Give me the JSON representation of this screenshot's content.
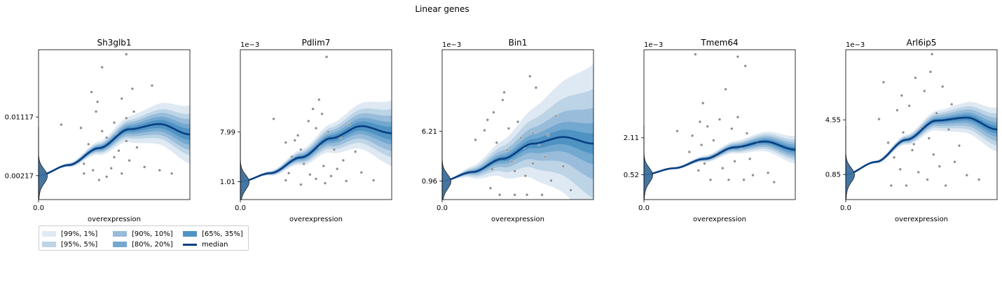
{
  "figure": {
    "title": "Linear genes"
  },
  "legend": {
    "items": [
      {
        "label": "[99%, 1%]",
        "color": "#dfe9f3"
      },
      {
        "label": "[95%, 5%]",
        "color": "#bcd4e6"
      },
      {
        "label": "[90%, 10%]",
        "color": "#98bcda"
      },
      {
        "label": "[80%, 20%]",
        "color": "#73a8d0"
      },
      {
        "label": "[65%, 35%]",
        "color": "#4f93c3"
      },
      {
        "label": "median",
        "color": "#083f83"
      }
    ]
  },
  "chart_data": [
    {
      "type": "line",
      "title": "Sh3glb1",
      "xlabel": "overexpression",
      "x_ticks": [
        "0.0"
      ],
      "y_ticks": [
        0.00217,
        0.01117
      ],
      "y_tick_labels": [
        "0.00217",
        "0.01117"
      ],
      "y_offset_label": "",
      "ylim": [
        -0.0015,
        0.0215
      ],
      "xlim": [
        0,
        1
      ],
      "median": [
        [
          0,
          0.00217
        ],
        [
          0.2,
          0.0038
        ],
        [
          0.4,
          0.0064
        ],
        [
          0.6,
          0.0093
        ],
        [
          0.8,
          0.0101
        ],
        [
          1,
          0.0085
        ]
      ],
      "band_widths": [
        0.0045,
        0.0032,
        0.0024,
        0.0016,
        0.0009
      ],
      "points": [
        [
          0.15,
          0.01
        ],
        [
          0.28,
          0.0095
        ],
        [
          0.33,
          0.007
        ],
        [
          0.3,
          0.004
        ],
        [
          0.36,
          0.003
        ],
        [
          0.35,
          0.015
        ],
        [
          0.38,
          0.012
        ],
        [
          0.39,
          0.0135
        ],
        [
          0.42,
          0.009
        ],
        [
          0.45,
          0.008
        ],
        [
          0.45,
          0.002
        ],
        [
          0.5,
          0.005
        ],
        [
          0.5,
          0.0103
        ],
        [
          0.53,
          0.006
        ],
        [
          0.55,
          0.014
        ],
        [
          0.55,
          0.0025
        ],
        [
          0.58,
          0.011
        ],
        [
          0.6,
          0.0045
        ],
        [
          0.62,
          0.0155
        ],
        [
          0.63,
          0.012
        ],
        [
          0.3,
          0.0025
        ],
        [
          0.4,
          0.0015
        ],
        [
          0.48,
          0.0033
        ],
        [
          0.52,
          0.0085
        ],
        [
          0.58,
          0.0075
        ],
        [
          0.65,
          0.0065
        ],
        [
          0.7,
          0.0035
        ],
        [
          0.75,
          0.016
        ],
        [
          0.8,
          0.003
        ],
        [
          0.88,
          0.0025
        ],
        [
          0.42,
          0.0188
        ],
        [
          0.58,
          0.0208
        ]
      ],
      "density_ref": 0.00217
    },
    {
      "type": "line",
      "title": "Pdlim7",
      "xlabel": "overexpression",
      "x_ticks": [
        "0.0"
      ],
      "y_ticks": [
        1.01,
        7.99
      ],
      "y_tick_labels": [
        "1.01",
        "7.99"
      ],
      "y_offset_label": "1e−3",
      "ylim": [
        -1.5,
        19.5
      ],
      "xlim": [
        0,
        1
      ],
      "median": [
        [
          0,
          1.01
        ],
        [
          0.2,
          2.2
        ],
        [
          0.4,
          4.4
        ],
        [
          0.6,
          7.1
        ],
        [
          0.8,
          8.8
        ],
        [
          1,
          7.8
        ]
      ],
      "band_widths": [
        4.6,
        3.4,
        2.5,
        1.6,
        0.9
      ],
      "points": [
        [
          0.22,
          9.8
        ],
        [
          0.3,
          6.5
        ],
        [
          0.3,
          1.2
        ],
        [
          0.32,
          2.2
        ],
        [
          0.34,
          4.5
        ],
        [
          0.36,
          6.8
        ],
        [
          0.38,
          7.5
        ],
        [
          0.4,
          5.5
        ],
        [
          0.4,
          0.6
        ],
        [
          0.42,
          3.5
        ],
        [
          0.45,
          9.5
        ],
        [
          0.46,
          2.0
        ],
        [
          0.48,
          11.2
        ],
        [
          0.5,
          8.5
        ],
        [
          0.5,
          1.4
        ],
        [
          0.52,
          12.5
        ],
        [
          0.52,
          6.0
        ],
        [
          0.54,
          10.5
        ],
        [
          0.55,
          3.2
        ],
        [
          0.56,
          0.8
        ],
        [
          0.58,
          8.0
        ],
        [
          0.6,
          1.8
        ],
        [
          0.62,
          5.5
        ],
        [
          0.64,
          2.8
        ],
        [
          0.66,
          7.2
        ],
        [
          0.68,
          4.0
        ],
        [
          0.7,
          1.1
        ],
        [
          0.72,
          9.0
        ],
        [
          0.76,
          5.2
        ],
        [
          0.8,
          2.3
        ],
        [
          0.88,
          1.2
        ],
        [
          0.57,
          18.5
        ]
      ],
      "density_ref": 1.01
    },
    {
      "type": "line",
      "title": "Bin1",
      "xlabel": "overexpression",
      "x_ticks": [
        "0.0"
      ],
      "y_ticks": [
        0.96,
        6.21
      ],
      "y_tick_labels": [
        "0.96",
        "6.21"
      ],
      "y_offset_label": "1e−3",
      "ylim": [
        -1.0,
        14.8
      ],
      "xlim": [
        0,
        1
      ],
      "median": [
        [
          0,
          0.96
        ],
        [
          0.2,
          1.9
        ],
        [
          0.4,
          3.3
        ],
        [
          0.6,
          4.9
        ],
        [
          0.8,
          5.6
        ],
        [
          1,
          4.9
        ]
      ],
      "band_widths": [
        8.4,
        5.8,
        3.8,
        2.2,
        1.1
      ],
      "points": [
        [
          0.22,
          5.3
        ],
        [
          0.28,
          6.3
        ],
        [
          0.3,
          7.4
        ],
        [
          0.32,
          0.2
        ],
        [
          0.34,
          8.2
        ],
        [
          0.36,
          5.0
        ],
        [
          0.38,
          -0.5
        ],
        [
          0.4,
          9.5
        ],
        [
          0.41,
          10.3
        ],
        [
          0.43,
          4.2
        ],
        [
          0.44,
          6.5
        ],
        [
          0.46,
          3.0
        ],
        [
          0.48,
          -0.5
        ],
        [
          0.5,
          7.2
        ],
        [
          0.52,
          5.5
        ],
        [
          0.54,
          4.5
        ],
        [
          0.55,
          1.5
        ],
        [
          0.56,
          -0.5
        ],
        [
          0.58,
          12.0
        ],
        [
          0.6,
          6.0
        ],
        [
          0.62,
          10.8
        ],
        [
          0.64,
          4.8
        ],
        [
          0.66,
          -0.5
        ],
        [
          0.68,
          3.5
        ],
        [
          0.7,
          5.8
        ],
        [
          0.72,
          1.0
        ],
        [
          0.75,
          7.8
        ],
        [
          0.8,
          2.5
        ],
        [
          0.85,
          0.0
        ],
        [
          0.33,
          2.2
        ],
        [
          0.48,
          2.0
        ],
        [
          0.6,
          2.8
        ]
      ],
      "density_ref": 0.96
    },
    {
      "type": "line",
      "title": "Tmem64",
      "xlabel": "overexpression",
      "x_ticks": [
        "0.0"
      ],
      "y_ticks": [
        0.52,
        2.11
      ],
      "y_tick_labels": [
        "0.52",
        "2.11"
      ],
      "y_offset_label": "1e−3",
      "ylim": [
        -0.55,
        5.9
      ],
      "xlim": [
        0,
        1
      ],
      "median": [
        [
          0,
          0.52
        ],
        [
          0.2,
          0.8
        ],
        [
          0.4,
          1.2
        ],
        [
          0.6,
          1.7
        ],
        [
          0.8,
          1.95
        ],
        [
          1,
          1.6
        ]
      ],
      "band_widths": [
        0.6,
        0.45,
        0.33,
        0.22,
        0.12
      ],
      "points": [
        [
          0.22,
          2.4
        ],
        [
          0.3,
          1.5
        ],
        [
          0.32,
          2.2
        ],
        [
          0.34,
          5.7
        ],
        [
          0.36,
          0.7
        ],
        [
          0.37,
          2.8
        ],
        [
          0.38,
          1.8
        ],
        [
          0.39,
          3.6
        ],
        [
          0.4,
          1.0
        ],
        [
          0.42,
          2.6
        ],
        [
          0.44,
          0.3
        ],
        [
          0.46,
          2.0
        ],
        [
          0.48,
          1.4
        ],
        [
          0.5,
          2.9
        ],
        [
          0.52,
          0.8
        ],
        [
          0.54,
          4.2
        ],
        [
          0.55,
          1.6
        ],
        [
          0.56,
          0.3
        ],
        [
          0.58,
          2.5
        ],
        [
          0.6,
          1.1
        ],
        [
          0.62,
          3.0
        ],
        [
          0.64,
          1.7
        ],
        [
          0.66,
          0.3
        ],
        [
          0.68,
          2.3
        ],
        [
          0.7,
          1.2
        ],
        [
          0.72,
          0.5
        ],
        [
          0.75,
          1.9
        ],
        [
          0.82,
          0.6
        ],
        [
          0.86,
          0.2
        ],
        [
          0.62,
          5.6
        ],
        [
          0.67,
          5.2
        ],
        [
          0.47,
          1.3
        ]
      ],
      "density_ref": 0.52
    },
    {
      "type": "line",
      "title": "Arl6ip5",
      "xlabel": "overexpression",
      "x_ticks": [
        "0.0"
      ],
      "y_ticks": [
        0.85,
        4.55
      ],
      "y_tick_labels": [
        "0.85",
        "4.55"
      ],
      "y_offset_label": "1e−3",
      "ylim": [
        -0.85,
        9.3
      ],
      "xlim": [
        0,
        1
      ],
      "median": [
        [
          0,
          0.85
        ],
        [
          0.2,
          1.7
        ],
        [
          0.4,
          3.2
        ],
        [
          0.6,
          4.5
        ],
        [
          0.8,
          4.7
        ],
        [
          1,
          3.9
        ]
      ],
      "band_widths": [
        1.5,
        1.1,
        0.8,
        0.5,
        0.27
      ],
      "points": [
        [
          0.22,
          4.6
        ],
        [
          0.28,
          3.0
        ],
        [
          0.3,
          0.1
        ],
        [
          0.32,
          2.0
        ],
        [
          0.34,
          5.2
        ],
        [
          0.36,
          1.2
        ],
        [
          0.37,
          6.2
        ],
        [
          0.38,
          3.7
        ],
        [
          0.4,
          0.1
        ],
        [
          0.42,
          5.5
        ],
        [
          0.44,
          2.5
        ],
        [
          0.46,
          7.4
        ],
        [
          0.48,
          1.0
        ],
        [
          0.5,
          4.0
        ],
        [
          0.52,
          6.5
        ],
        [
          0.54,
          0.5
        ],
        [
          0.55,
          3.3
        ],
        [
          0.56,
          7.8
        ],
        [
          0.58,
          2.2
        ],
        [
          0.6,
          5.0
        ],
        [
          0.62,
          1.4
        ],
        [
          0.64,
          6.8
        ],
        [
          0.66,
          0.1
        ],
        [
          0.68,
          3.9
        ],
        [
          0.7,
          5.6
        ],
        [
          0.72,
          1.7
        ],
        [
          0.75,
          2.8
        ],
        [
          0.8,
          0.8
        ],
        [
          0.88,
          0.5
        ],
        [
          0.57,
          9.0
        ],
        [
          0.25,
          7.1
        ],
        [
          0.45,
          2.9
        ]
      ],
      "density_ref": 0.85
    }
  ]
}
